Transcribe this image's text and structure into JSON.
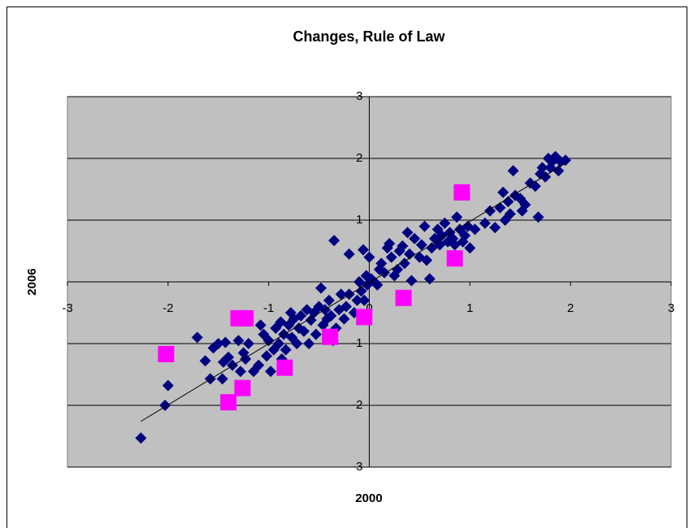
{
  "chart_data": {
    "type": "scatter",
    "title": "Changes, Rule of Law",
    "x_label": "2000",
    "y_label": "2006",
    "xlim": [
      -3,
      3
    ],
    "ylim": [
      -3,
      3
    ],
    "xticks": [
      -3,
      -2,
      -1,
      0,
      1,
      2,
      3
    ],
    "yticks": [
      -3,
      -2,
      -1,
      0,
      1,
      2,
      3
    ],
    "grid": true,
    "plot_background": "#c0c0c0",
    "series": [
      {
        "color": "#000080",
        "marker": "diamond",
        "x": [
          -2.27,
          -2.03,
          -2.0,
          -1.71,
          -1.63,
          -1.58,
          -1.55,
          -1.5,
          -1.46,
          -1.45,
          -1.43,
          -1.4,
          -1.36,
          -1.3,
          -1.28,
          -1.25,
          -1.23,
          -1.2,
          -1.15,
          -1.1,
          -1.08,
          -1.05,
          -1.02,
          -1.0,
          -0.98,
          -0.95,
          -0.93,
          -0.9,
          -0.88,
          -0.87,
          -0.85,
          -0.83,
          -0.8,
          -0.78,
          -0.77,
          -0.75,
          -0.72,
          -0.7,
          -0.68,
          -0.65,
          -0.62,
          -0.6,
          -0.58,
          -0.55,
          -0.53,
          -0.5,
          -0.48,
          -0.46,
          -0.44,
          -0.42,
          -0.4,
          -0.38,
          -0.36,
          -0.35,
          -0.33,
          -0.3,
          -0.28,
          -0.25,
          -0.23,
          -0.2,
          -0.2,
          -0.15,
          -0.12,
          -0.1,
          -0.08,
          -0.06,
          -0.05,
          -0.03,
          -0.02,
          0.0,
          0.02,
          0.05,
          0.08,
          0.1,
          0.12,
          0.15,
          0.18,
          0.2,
          0.22,
          0.25,
          0.28,
          0.3,
          0.33,
          0.35,
          0.38,
          0.4,
          0.42,
          0.45,
          0.5,
          0.52,
          0.55,
          0.57,
          0.6,
          0.62,
          0.65,
          0.68,
          0.7,
          0.72,
          0.75,
          0.78,
          0.8,
          0.83,
          0.85,
          0.87,
          0.9,
          0.93,
          0.95,
          0.98,
          1.0,
          1.05,
          1.15,
          1.2,
          1.25,
          1.3,
          1.33,
          1.35,
          1.38,
          1.4,
          1.43,
          1.45,
          1.5,
          1.52,
          1.55,
          1.6,
          1.65,
          1.68,
          1.7,
          1.72,
          1.75,
          1.78,
          1.8,
          1.82,
          1.85,
          1.88,
          1.9,
          1.95
        ],
        "y": [
          -2.53,
          -2.0,
          -1.68,
          -0.9,
          -1.28,
          -1.57,
          -1.07,
          -1.0,
          -1.57,
          -1.3,
          -0.98,
          -1.22,
          -1.35,
          -0.95,
          -1.45,
          -1.15,
          -1.25,
          -1.0,
          -1.45,
          -1.35,
          -0.7,
          -0.85,
          -1.2,
          -0.95,
          -1.45,
          -1.1,
          -0.75,
          -1.0,
          -0.65,
          -1.25,
          -0.85,
          -1.1,
          -0.7,
          -0.5,
          -0.9,
          -0.6,
          -1.0,
          -0.75,
          -0.55,
          -0.8,
          -0.45,
          -1.0,
          -0.62,
          -0.5,
          -0.85,
          -0.4,
          -0.1,
          -0.7,
          -0.45,
          -0.6,
          -0.3,
          -0.55,
          -0.95,
          0.67,
          -0.75,
          -0.45,
          -0.2,
          -0.6,
          -0.4,
          -0.2,
          0.45,
          -0.5,
          -0.3,
          0.0,
          -0.15,
          0.52,
          -0.3,
          0.1,
          -0.05,
          0.4,
          0.05,
          0.0,
          -0.05,
          0.2,
          0.3,
          0.15,
          0.55,
          0.62,
          0.4,
          0.1,
          0.2,
          0.5,
          0.58,
          0.3,
          0.8,
          0.45,
          0.02,
          0.7,
          0.4,
          0.6,
          0.9,
          0.35,
          0.05,
          0.55,
          0.7,
          0.85,
          0.6,
          0.75,
          0.95,
          0.65,
          0.8,
          0.7,
          0.6,
          1.05,
          0.85,
          0.65,
          0.75,
          0.9,
          0.55,
          0.85,
          0.95,
          1.15,
          0.88,
          1.2,
          1.45,
          1.0,
          1.3,
          1.1,
          1.8,
          1.4,
          1.35,
          1.15,
          1.25,
          1.6,
          1.55,
          1.05,
          1.75,
          1.85,
          1.7,
          2.0,
          1.85,
          1.95,
          2.03,
          1.8,
          1.95,
          1.97
        ]
      },
      {
        "color": "#ff00ff",
        "marker": "square",
        "x": [
          -2.02,
          -1.4,
          -1.26,
          -1.3,
          -1.23,
          -0.84,
          -0.39,
          -0.05,
          0.34,
          0.85,
          0.92
        ],
        "y": [
          -1.17,
          -1.95,
          -1.72,
          -0.59,
          -0.59,
          -1.39,
          -0.89,
          -0.57,
          -0.26,
          0.38,
          1.45
        ]
      }
    ],
    "trendline": {
      "color": "#000000",
      "x": [
        -2.27,
        1.95
      ],
      "y": [
        -2.26,
        1.92
      ]
    }
  }
}
